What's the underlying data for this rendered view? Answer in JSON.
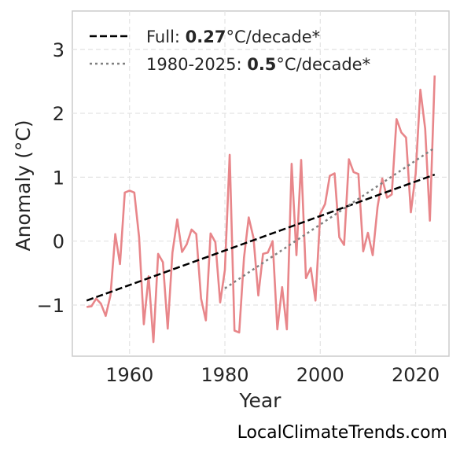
{
  "chart_data": {
    "type": "line",
    "xlabel": "Year",
    "ylabel": "Anomaly (°C)",
    "xlim": [
      1948,
      2027
    ],
    "ylim": [
      -1.8,
      3.6
    ],
    "x_ticks": [
      1960,
      1980,
      2000,
      2020
    ],
    "y_ticks": [
      -1,
      0,
      1,
      2,
      3
    ],
    "x_tick_labels": [
      "1960",
      "1980",
      "2000",
      "2020"
    ],
    "y_tick_labels": [
      "−1",
      "0",
      "1",
      "2",
      "3"
    ],
    "grid": true,
    "legend_position": "top-left",
    "series": [
      {
        "style": "solid",
        "color": "#e8868a",
        "x": [
          1951,
          1952,
          1953,
          1954,
          1955,
          1956,
          1957,
          1958,
          1959,
          1960,
          1961,
          1962,
          1963,
          1964,
          1965,
          1966,
          1967,
          1968,
          1969,
          1970,
          1971,
          1972,
          1973,
          1974,
          1975,
          1976,
          1977,
          1978,
          1979,
          1980,
          1981,
          1982,
          1983,
          1984,
          1985,
          1986,
          1987,
          1988,
          1989,
          1990,
          1991,
          1992,
          1993,
          1994,
          1995,
          1996,
          1997,
          1998,
          1999,
          2000,
          2001,
          2002,
          2003,
          2004,
          2005,
          2006,
          2007,
          2008,
          2009,
          2010,
          2011,
          2012,
          2013,
          2014,
          2015,
          2016,
          2017,
          2018,
          2019,
          2020,
          2021,
          2022,
          2023,
          2024
        ],
        "values": [
          -1.03,
          -1.02,
          -0.9,
          -0.98,
          -1.17,
          -0.85,
          0.11,
          -0.36,
          0.76,
          0.79,
          0.76,
          0.06,
          -1.3,
          -0.55,
          -1.58,
          -0.2,
          -0.33,
          -1.37,
          -0.18,
          0.34,
          -0.17,
          -0.05,
          0.18,
          0.11,
          -0.9,
          -1.24,
          0.12,
          -0.02,
          -0.96,
          -0.45,
          1.35,
          -1.4,
          -1.43,
          -0.26,
          0.37,
          0.05,
          -0.85,
          -0.2,
          -0.18,
          0.0,
          -1.38,
          -0.72,
          -1.38,
          1.21,
          -0.22,
          1.27,
          -0.58,
          -0.42,
          -0.93,
          0.43,
          0.58,
          1.02,
          1.06,
          0.06,
          -0.06,
          1.28,
          1.08,
          1.05,
          -0.16,
          0.13,
          -0.22,
          0.53,
          0.98,
          0.68,
          0.73,
          1.91,
          1.7,
          1.62,
          0.45,
          1.05,
          2.37,
          1.76,
          0.32,
          2.59
        ]
      },
      {
        "name": "Full",
        "style": "dashed",
        "color": "#000000",
        "x": [
          1951,
          2024
        ],
        "values": [
          -0.93,
          1.04
        ]
      },
      {
        "name": "1980-2025",
        "style": "dotted",
        "color": "#808080",
        "x": [
          1980,
          2024
        ],
        "values": [
          -0.74,
          1.46
        ]
      }
    ],
    "legend": [
      {
        "prefix": "Full: ",
        "value": "0.27",
        "suffix": "°C/decade*",
        "style": "dashed",
        "color": "#000000"
      },
      {
        "prefix": "1980-2025: ",
        "value": "0.5",
        "suffix": "°C/decade*",
        "style": "dotted",
        "color": "#808080"
      }
    ]
  },
  "attribution": "LocalClimateTrends.com"
}
